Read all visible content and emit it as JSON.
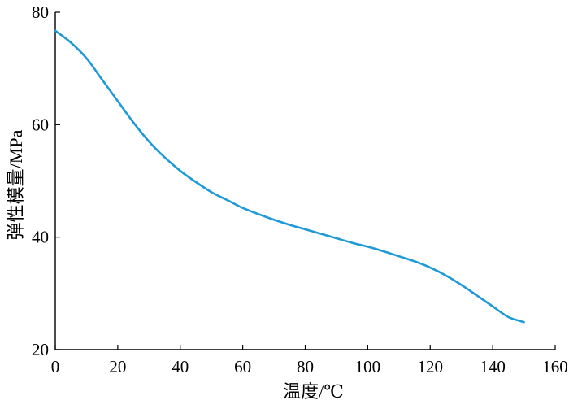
{
  "chart_data": {
    "type": "line",
    "title": "",
    "xlabel": "温度/℃",
    "ylabel": "弹性模量/MPa",
    "xlim": [
      0,
      160
    ],
    "ylim": [
      20,
      80
    ],
    "x_ticks": [
      0,
      20,
      40,
      60,
      80,
      100,
      120,
      140,
      160
    ],
    "y_ticks": [
      20,
      40,
      60,
      80
    ],
    "grid": false,
    "legend": "none",
    "colors": {
      "line": "#1f9ad6",
      "axis": "#000000"
    },
    "series": [
      {
        "x": [
          0,
          5,
          10,
          15,
          20,
          25,
          30,
          35,
          40,
          45,
          50,
          55,
          60,
          65,
          70,
          75,
          80,
          85,
          90,
          95,
          100,
          105,
          110,
          115,
          120,
          125,
          130,
          135,
          140,
          145,
          150
        ],
        "y": [
          76.7,
          74.6,
          71.8,
          68.0,
          64.2,
          60.4,
          57.0,
          54.2,
          51.8,
          49.8,
          48.0,
          46.6,
          45.2,
          44.1,
          43.1,
          42.2,
          41.4,
          40.6,
          39.8,
          39.0,
          38.3,
          37.5,
          36.6,
          35.7,
          34.6,
          33.2,
          31.5,
          29.6,
          27.7,
          25.8,
          24.9
        ]
      }
    ]
  }
}
